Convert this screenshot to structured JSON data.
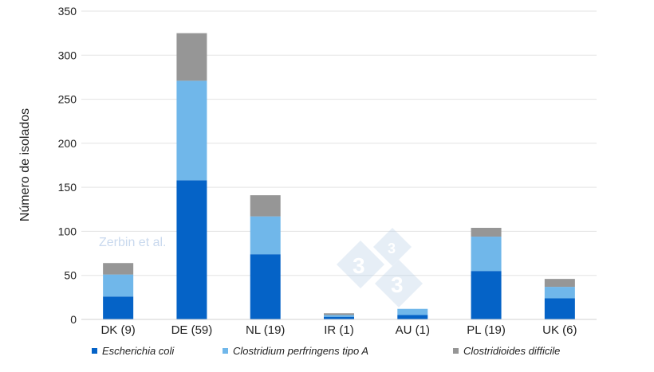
{
  "chart_data": {
    "type": "bar",
    "stacked": true,
    "title": "",
    "xlabel": "",
    "ylabel": "Número de isolados",
    "ylim": [
      0,
      350
    ],
    "yticks": [
      0,
      50,
      100,
      150,
      200,
      250,
      300,
      350
    ],
    "grid": true,
    "legend_position": "bottom",
    "categories": [
      "DK (9)",
      "DE (59)",
      "NL (19)",
      "IR (1)",
      "AU (1)",
      "PL (19)",
      "UK (6)"
    ],
    "series": [
      {
        "name": "Escherichia coli",
        "color": "#0563c7",
        "values": [
          26,
          158,
          74,
          3,
          5,
          55,
          24
        ]
      },
      {
        "name": "Clostridium perfringens tipo A",
        "color": "#70b7ea",
        "values": [
          25,
          113,
          43,
          2,
          7,
          39,
          13
        ]
      },
      {
        "name": "Clostridioides difficile",
        "color": "#969696",
        "values": [
          13,
          54,
          24,
          2,
          0,
          10,
          9
        ]
      }
    ],
    "watermark": "Zerbin et al."
  }
}
